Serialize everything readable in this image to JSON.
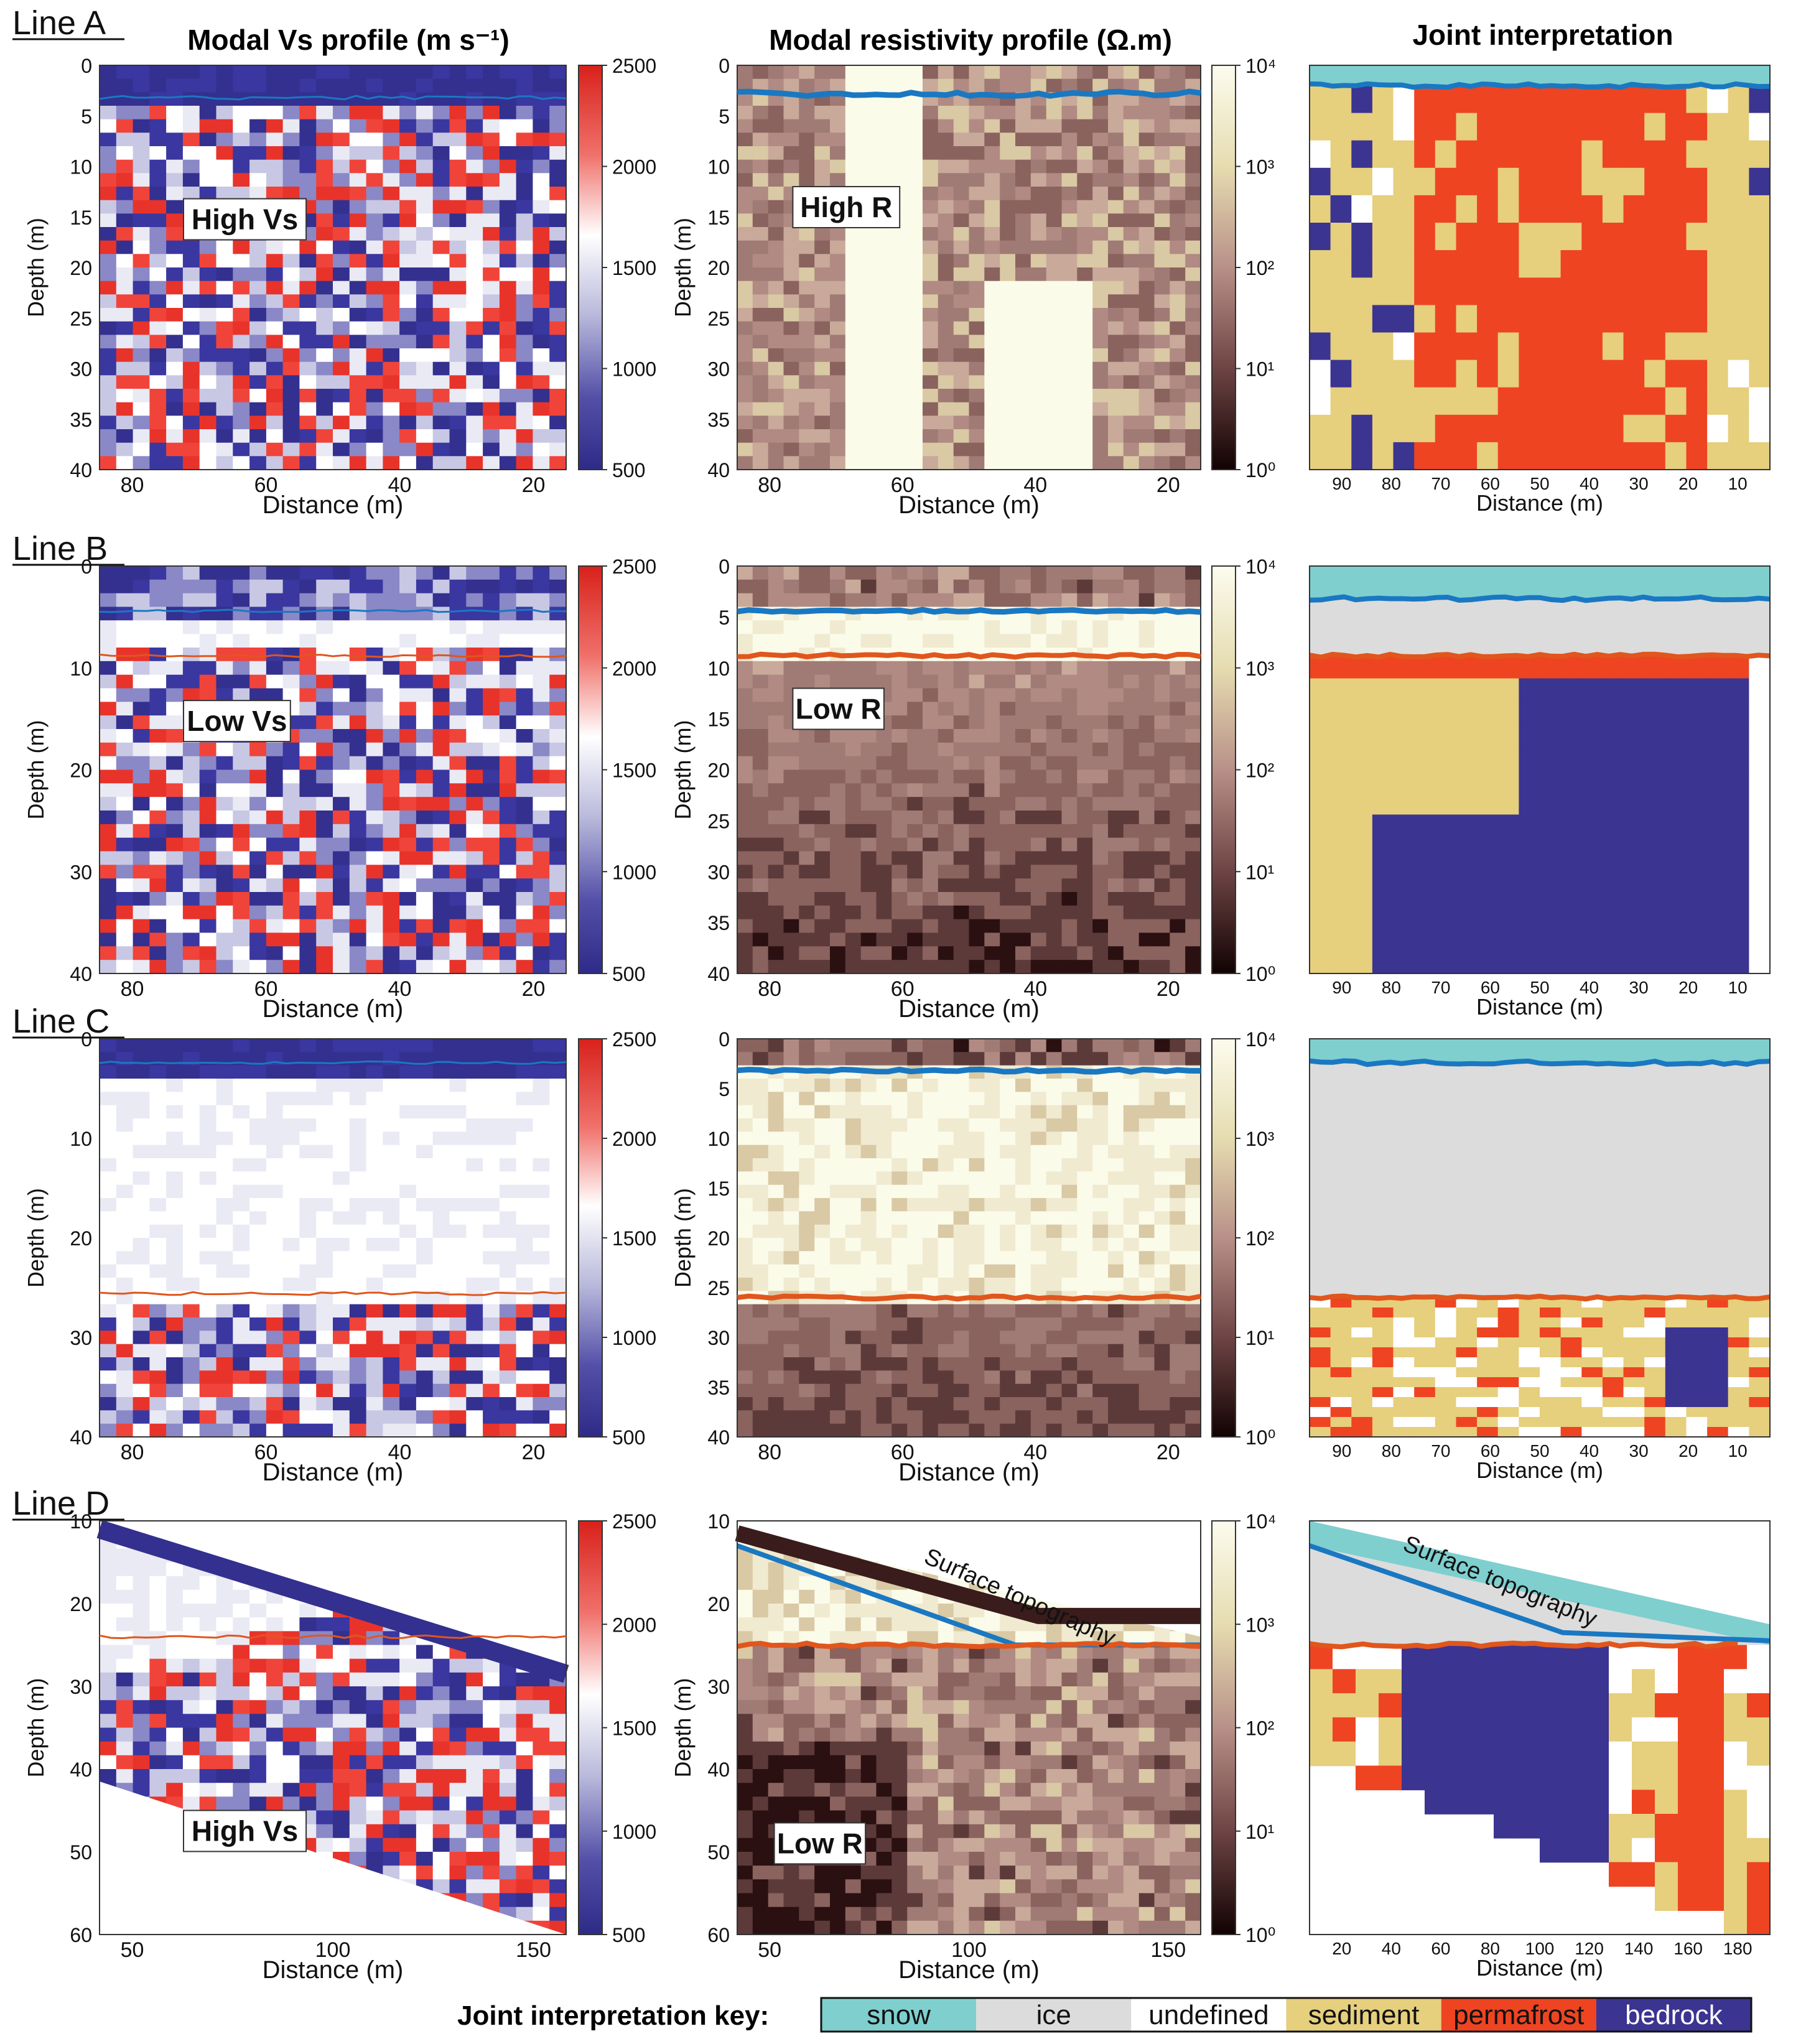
{
  "column_titles": {
    "vs": "Modal Vs profile (m s⁻¹)",
    "res": "Modal resistivity profile (Ω.m)",
    "joint": "Joint interpretation"
  },
  "common": {
    "depth_label": "Depth (m)",
    "distance_label": "Distance (m)",
    "vs_colorbar_ticks": [
      "2500",
      "2000",
      "1500",
      "1000",
      "500"
    ],
    "res_colorbar_ticks": [
      "10⁴",
      "10³",
      "10²",
      "10¹",
      "10⁰"
    ]
  },
  "rows": [
    {
      "line_label": "Line A",
      "vs_annotation": "High Vs",
      "res_annotation": "High R",
      "depth_ticks": [
        "0",
        "5",
        "10",
        "15",
        "20",
        "25",
        "30",
        "35",
        "40"
      ],
      "res_depth_ticks": [
        "0",
        "5",
        "10",
        "15",
        "20",
        "25",
        "30",
        "35",
        "40"
      ],
      "x_ticks": [
        "80",
        "60",
        "40",
        "20"
      ],
      "joint_x_ticks": [
        "90",
        "80",
        "70",
        "60",
        "50",
        "40",
        "30",
        "20",
        "10"
      ]
    },
    {
      "line_label": "Line B",
      "vs_annotation": "Low Vs",
      "res_annotation": "Low R",
      "depth_ticks": [
        "0",
        "10",
        "20",
        "30",
        "40"
      ],
      "res_depth_ticks": [
        "0",
        "5",
        "10",
        "15",
        "20",
        "25",
        "30",
        "35",
        "40"
      ],
      "x_ticks": [
        "80",
        "60",
        "40",
        "20"
      ],
      "joint_x_ticks": [
        "90",
        "80",
        "70",
        "60",
        "50",
        "40",
        "30",
        "20",
        "10"
      ]
    },
    {
      "line_label": "Line C",
      "depth_ticks": [
        "0",
        "10",
        "20",
        "30",
        "40"
      ],
      "res_depth_ticks": [
        "0",
        "5",
        "10",
        "15",
        "20",
        "25",
        "30",
        "35",
        "40"
      ],
      "x_ticks": [
        "80",
        "60",
        "40",
        "20"
      ],
      "joint_x_ticks": [
        "90",
        "80",
        "70",
        "60",
        "50",
        "40",
        "30",
        "20",
        "10"
      ]
    },
    {
      "line_label": "Line D",
      "vs_annotation": "High Vs",
      "res_annotation": "Low R",
      "topo_label": "Surface topography",
      "depth_ticks": [
        "10",
        "20",
        "30",
        "40",
        "50",
        "60"
      ],
      "res_depth_ticks": [
        "10",
        "20",
        "30",
        "40",
        "50",
        "60"
      ],
      "x_ticks": [
        "50",
        "100",
        "150"
      ],
      "joint_x_ticks": [
        "20",
        "40",
        "60",
        "80",
        "100",
        "120",
        "140",
        "160",
        "180"
      ]
    }
  ],
  "legend": {
    "title": "Joint interpretation key:",
    "items": [
      {
        "label": "snow",
        "color": "#7fcfcf"
      },
      {
        "label": "ice",
        "color": "#dcdcdc"
      },
      {
        "label": "undefined",
        "color": "#ffffff"
      },
      {
        "label": "sediment",
        "color": "#e6cf7d"
      },
      {
        "label": "permafrost",
        "color": "#ee4422"
      },
      {
        "label": "bedrock",
        "color": "#3b3490"
      }
    ]
  },
  "colors": {
    "vs_high": "#e8332b",
    "vs_mid": "#f4f4f8",
    "vs_low": "#33308f",
    "res_high": "#fbfbe8",
    "res_mid": "#a97d76",
    "res_low": "#1a0606",
    "interface_top": "#1a78c2",
    "interface_bottom": "#e0561d"
  }
}
